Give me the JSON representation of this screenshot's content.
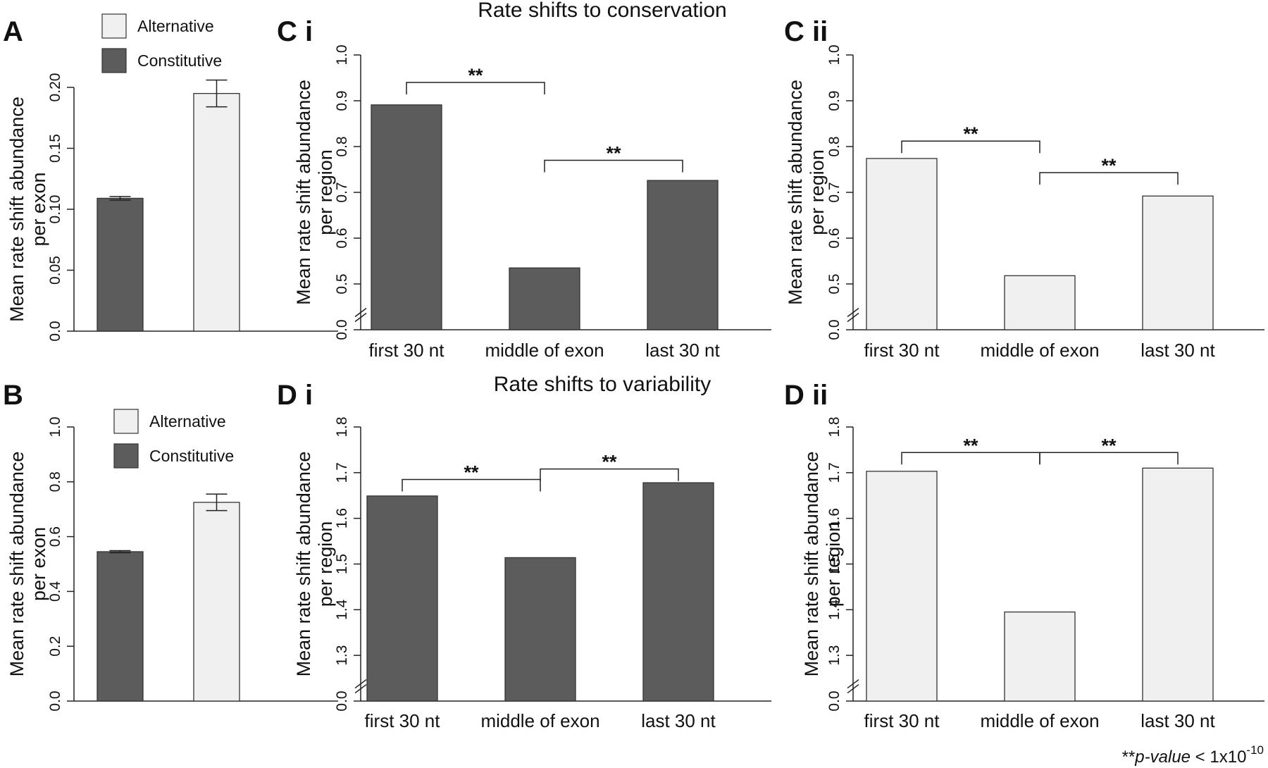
{
  "titles": {
    "conservation": "Rate shifts to conservation",
    "variability": "Rate shifts to variability"
  },
  "footnote": {
    "prefix": "**",
    "italic": "p-value",
    "rest": "  < 1x10",
    "exponent": "-10"
  },
  "colors": {
    "constitutive": "#5c5c5c",
    "alternative": "#f0f0f0",
    "outline": "#333333"
  },
  "chart_data": [
    {
      "id": "A",
      "panel_label": "A",
      "type": "bar",
      "ylabel": [
        "Mean rate shift abundance",
        "per exon"
      ],
      "ylim": [
        0,
        0.2
      ],
      "yticks": [
        "0.0",
        "0.05",
        "0.10",
        "0.15",
        "0.20"
      ],
      "ytick_values": [
        0,
        0.05,
        0.1,
        0.15,
        0.2
      ],
      "axis_break": false,
      "categories": [
        "",
        ""
      ],
      "legend": [
        {
          "label": "Alternative",
          "color": "#f0f0f0"
        },
        {
          "label": "Constitutive",
          "color": "#5c5c5c"
        }
      ],
      "series": [
        {
          "name": "Constitutive",
          "value": 0.109,
          "error": 0.0015,
          "color": "#5c5c5c"
        },
        {
          "name": "Alternative",
          "value": 0.195,
          "error": 0.011,
          "color": "#f0f0f0"
        }
      ],
      "significance": []
    },
    {
      "id": "B",
      "panel_label": "B",
      "type": "bar",
      "ylabel": [
        "Mean rate shift abundance",
        "per exon"
      ],
      "ylim": [
        0,
        1.0
      ],
      "yticks": [
        "0.0",
        "0.2",
        "0.4",
        "0.6",
        "0.8",
        "1.0"
      ],
      "ytick_values": [
        0,
        0.2,
        0.4,
        0.6,
        0.8,
        1.0
      ],
      "axis_break": false,
      "categories": [
        "",
        ""
      ],
      "legend": [
        {
          "label": "Alternative",
          "color": "#f0f0f0"
        },
        {
          "label": "Constitutive",
          "color": "#5c5c5c"
        }
      ],
      "series": [
        {
          "name": "Constitutive",
          "value": 0.545,
          "error": 0.004,
          "color": "#5c5c5c"
        },
        {
          "name": "Alternative",
          "value": 0.725,
          "error": 0.03,
          "color": "#f0f0f0"
        }
      ],
      "significance": []
    },
    {
      "id": "Ci",
      "panel_label": "C i",
      "type": "bar",
      "ylabel": [
        "Mean rate shift abundance",
        "per region"
      ],
      "ylim": [
        0.4,
        1.0
      ],
      "yticks": [
        "0.0",
        "0.5",
        "0.6",
        "0.7",
        "0.8",
        "0.9",
        "1.0"
      ],
      "ytick_values": [
        0.4,
        0.5,
        0.6,
        0.7,
        0.8,
        0.9,
        1.0
      ],
      "axis_break": true,
      "categories": [
        "first 30 nt",
        "middle of exon",
        "last 30 nt"
      ],
      "bar_color": "#5c5c5c",
      "values": [
        0.891,
        0.535,
        0.726
      ],
      "significance": [
        {
          "from": 0,
          "to": 1,
          "y": 0.94,
          "label": "**"
        },
        {
          "from": 1,
          "to": 2,
          "y": 0.77,
          "label": "**"
        }
      ]
    },
    {
      "id": "Cii",
      "panel_label": "C ii",
      "type": "bar",
      "ylabel": [
        "Mean rate shift abundance",
        "per region"
      ],
      "ylim": [
        0.4,
        1.0
      ],
      "yticks": [
        "0.0",
        "0.5",
        "0.6",
        "0.7",
        "0.8",
        "0.9",
        "1.0"
      ],
      "ytick_values": [
        0.4,
        0.5,
        0.6,
        0.7,
        0.8,
        0.9,
        1.0
      ],
      "axis_break": true,
      "categories": [
        "first 30 nt",
        "middle of exon",
        "last 30 nt"
      ],
      "bar_color": "#f0f0f0",
      "values": [
        0.774,
        0.518,
        0.692
      ],
      "significance": [
        {
          "from": 0,
          "to": 1,
          "y": 0.812,
          "label": "**"
        },
        {
          "from": 1,
          "to": 2,
          "y": 0.743,
          "label": "**"
        }
      ]
    },
    {
      "id": "Di",
      "panel_label": "D i",
      "type": "bar",
      "ylabel": [
        "Mean rate shift abundance",
        "per region"
      ],
      "ylim": [
        1.2,
        1.8
      ],
      "yticks": [
        "0.0",
        "1.3",
        "1.4",
        "1.5",
        "1.6",
        "1.7",
        "1.8"
      ],
      "ytick_values": [
        1.2,
        1.3,
        1.4,
        1.5,
        1.6,
        1.7,
        1.8
      ],
      "axis_break": true,
      "categories": [
        "first 30 nt",
        "middle of exon",
        "last 30 nt"
      ],
      "bar_color": "#5c5c5c",
      "values": [
        1.649,
        1.514,
        1.678
      ],
      "significance": [
        {
          "from": 0,
          "to": 1,
          "y": 1.685,
          "label": "**"
        },
        {
          "from": 1,
          "to": 2,
          "y": 1.708,
          "label": "**"
        }
      ]
    },
    {
      "id": "Dii",
      "panel_label": "D ii",
      "type": "bar",
      "ylabel": [
        "Mean rate shift abundance",
        "per region"
      ],
      "ylim": [
        1.2,
        1.8
      ],
      "yticks": [
        "0.0",
        "1.3",
        "1.4",
        "1.5",
        "1.6",
        "1.7",
        "1.8"
      ],
      "ytick_values": [
        1.2,
        1.3,
        1.4,
        1.5,
        1.6,
        1.7,
        1.8
      ],
      "axis_break": true,
      "categories": [
        "first 30 nt",
        "middle of exon",
        "last 30 nt"
      ],
      "bar_color": "#f0f0f0",
      "values": [
        1.703,
        1.395,
        1.71
      ],
      "significance": [
        {
          "from": 0,
          "to": 1,
          "y": 1.744,
          "label": "**"
        },
        {
          "from": 1,
          "to": 2,
          "y": 1.744,
          "label": "**"
        }
      ]
    }
  ]
}
